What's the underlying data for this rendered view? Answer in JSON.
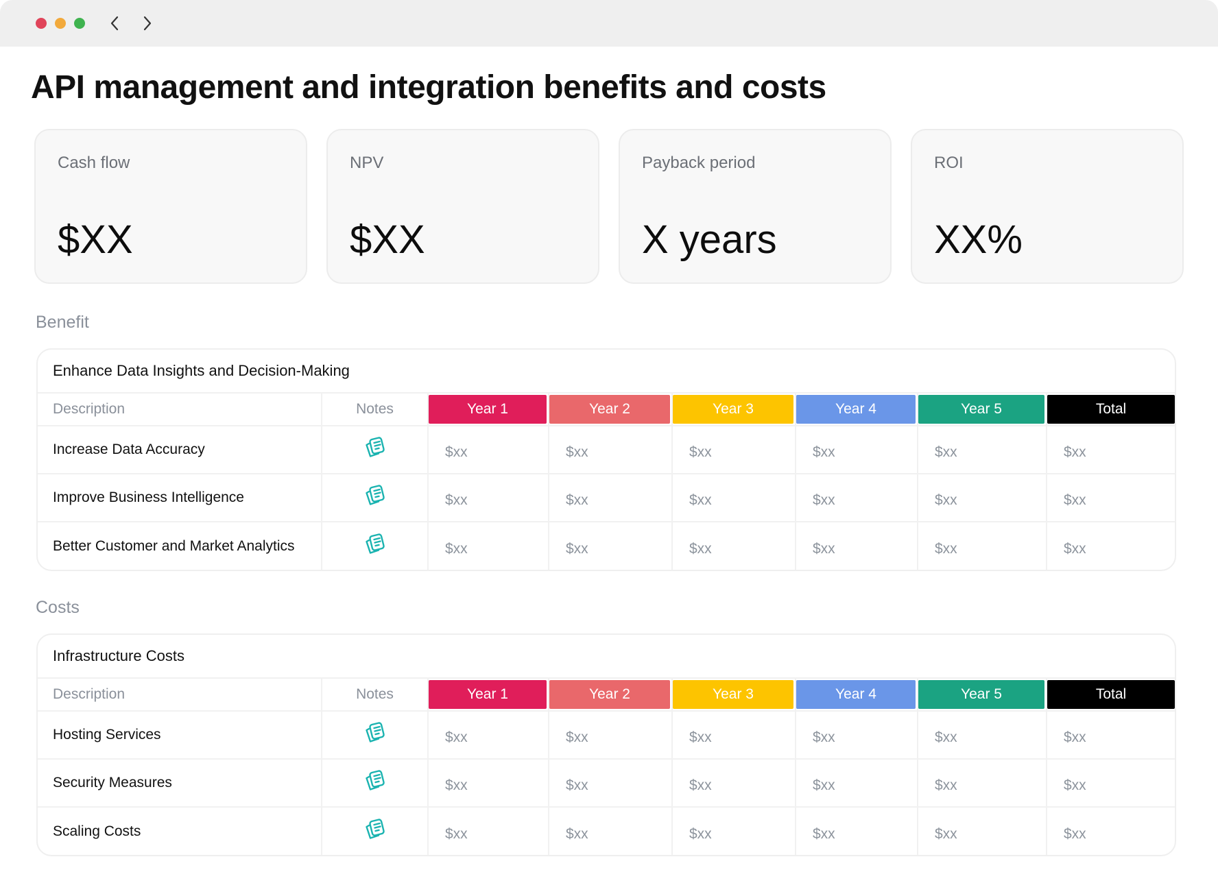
{
  "window": {
    "controls": [
      "close",
      "minimize",
      "zoom"
    ],
    "nav": {
      "back_icon": "chevron-left-icon",
      "forward_icon": "chevron-right-icon"
    }
  },
  "page": {
    "title": "API management and integration benefits and costs"
  },
  "kpis": [
    {
      "label": "Cash flow",
      "value": "$XX"
    },
    {
      "label": "NPV",
      "value": "$XX"
    },
    {
      "label": "Payback period",
      "value": "X years"
    },
    {
      "label": "ROI",
      "value": "XX%"
    }
  ],
  "columns": {
    "description": "Description",
    "notes": "Notes",
    "years": [
      {
        "label": "Year 1",
        "color": "#e01e5a"
      },
      {
        "label": "Year 2",
        "color": "#e9686b"
      },
      {
        "label": "Year 3",
        "color": "#fdc400"
      },
      {
        "label": "Year 4",
        "color": "#6a96e8"
      },
      {
        "label": "Year 5",
        "color": "#1ba382"
      },
      {
        "label": "Total",
        "color": "#000000"
      }
    ]
  },
  "benefit": {
    "section_label": "Benefit",
    "table_title": "Enhance Data Insights and Decision-Making",
    "rows": [
      {
        "description": "Increase Data Accuracy",
        "values": [
          "$xx",
          "$xx",
          "$xx",
          "$xx",
          "$xx",
          "$xx"
        ]
      },
      {
        "description": "Improve Business Intelligence",
        "values": [
          "$xx",
          "$xx",
          "$xx",
          "$xx",
          "$xx",
          "$xx"
        ]
      },
      {
        "description": "Better Customer and Market Analytics",
        "values": [
          "$xx",
          "$xx",
          "$xx",
          "$xx",
          "$xx",
          "$xx"
        ]
      }
    ]
  },
  "costs": {
    "section_label": "Costs",
    "table_title": "Infrastructure Costs",
    "rows": [
      {
        "description": "Hosting Services",
        "values": [
          "$xx",
          "$xx",
          "$xx",
          "$xx",
          "$xx",
          "$xx"
        ]
      },
      {
        "description": "Security Measures",
        "values": [
          "$xx",
          "$xx",
          "$xx",
          "$xx",
          "$xx",
          "$xx"
        ]
      },
      {
        "description": "Scaling Costs",
        "values": [
          "$xx",
          "$xx",
          "$xx",
          "$xx",
          "$xx",
          "$xx"
        ]
      }
    ]
  },
  "icons": {
    "notes": "notes-icon",
    "notes_color": "#1ab3b0"
  }
}
